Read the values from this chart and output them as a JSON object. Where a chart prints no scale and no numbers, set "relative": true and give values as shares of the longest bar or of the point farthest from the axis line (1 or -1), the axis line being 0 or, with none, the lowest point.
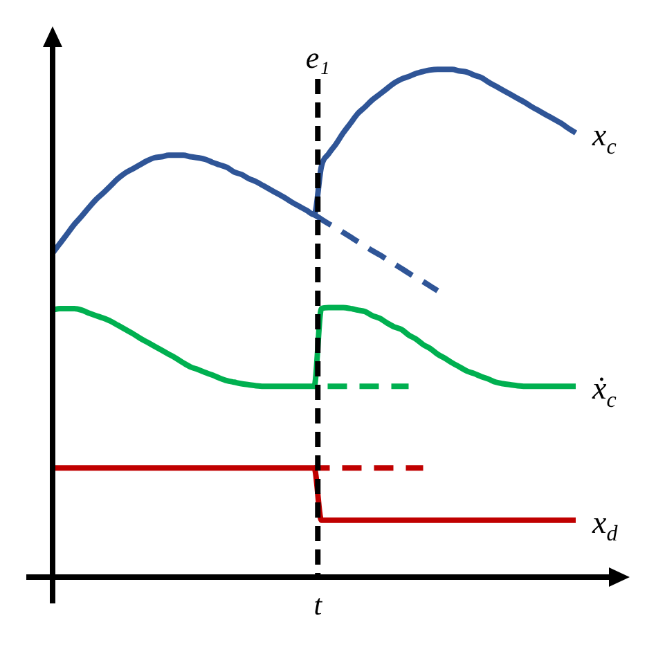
{
  "chart_data": {
    "type": "line",
    "relative": true,
    "categories": [
      null,
      null,
      null,
      null,
      null,
      null,
      null,
      null,
      null,
      null,
      null,
      null,
      null,
      null,
      null,
      null,
      null,
      null,
      null,
      null,
      null,
      null,
      null,
      null,
      null,
      null,
      null,
      null,
      null,
      null,
      null,
      null,
      null,
      null,
      null,
      null,
      null,
      null,
      null,
      null,
      null,
      null,
      null,
      null,
      null,
      null,
      null,
      null,
      null,
      null,
      null,
      null,
      null,
      null,
      null,
      null,
      null,
      null,
      null,
      null,
      null,
      null,
      null,
      null,
      null,
      null,
      null,
      null,
      null,
      null,
      null,
      null,
      null
    ],
    "series": [
      {
        "name": "x$_{c}$",
        "color": "#2f5597",
        "values": [
          0.638,
          0.657,
          0.676,
          0.695,
          0.711,
          0.728,
          0.744,
          0.757,
          0.771,
          0.785,
          0.796,
          0.804,
          0.812,
          0.82,
          0.826,
          0.828,
          0.831,
          0.831,
          0.831,
          0.828,
          0.826,
          0.823,
          0.817,
          0.812,
          0.807,
          0.798,
          0.793,
          0.785,
          0.779,
          0.771,
          0.763,
          0.755,
          0.747,
          0.738,
          0.73,
          0.722,
          0.714,
          0.809,
          0.834,
          0.853,
          0.875,
          0.894,
          0.913,
          0.926,
          0.94,
          0.951,
          0.962,
          0.973,
          0.981,
          0.986,
          0.992,
          0.996,
          0.999,
          1,
          1,
          1,
          0.997,
          0.995,
          0.989,
          0.984,
          0.975,
          0.967,
          0.959,
          0.951,
          0.943,
          0.935,
          0.926,
          0.918,
          0.91,
          0.902,
          0.894,
          0.884,
          0.875
        ]
      },
      {
        "color": "#2f5597",
        "line_style": "dashed",
        "values": [
          null,
          null,
          null,
          null,
          null,
          null,
          null,
          null,
          null,
          null,
          null,
          null,
          null,
          null,
          null,
          null,
          null,
          null,
          null,
          null,
          null,
          null,
          null,
          null,
          null,
          null,
          null,
          null,
          null,
          null,
          null,
          null,
          null,
          null,
          null,
          null,
          0.714,
          0.705,
          0.696,
          0.688,
          0.679,
          0.67,
          0.661,
          0.652,
          0.643,
          0.635,
          0.626,
          0.617,
          0.608,
          0.599,
          0.59,
          0.582,
          0.573,
          0.564,
          null,
          null,
          null,
          null,
          null,
          null,
          null,
          null,
          null,
          null,
          null,
          null,
          null,
          null,
          null,
          null,
          null,
          null,
          null
        ]
      },
      {
        "name": "ẋ$_{c}$",
        "color": "#00b050",
        "values": [
          0.526,
          0.529,
          0.529,
          0.529,
          0.526,
          0.52,
          0.515,
          0.51,
          0.504,
          0.496,
          0.488,
          0.48,
          0.471,
          0.463,
          0.455,
          0.447,
          0.439,
          0.431,
          0.422,
          0.414,
          0.409,
          0.403,
          0.398,
          0.392,
          0.387,
          0.384,
          0.381,
          0.379,
          0.377,
          0.376,
          0.376,
          0.376,
          0.376,
          0.376,
          0.376,
          0.376,
          0.376,
          0.529,
          0.531,
          0.531,
          0.531,
          0.529,
          0.526,
          0.523,
          0.515,
          0.51,
          0.501,
          0.493,
          0.488,
          0.477,
          0.469,
          0.458,
          0.45,
          0.439,
          0.431,
          0.422,
          0.414,
          0.406,
          0.401,
          0.395,
          0.39,
          0.384,
          0.381,
          0.379,
          0.377,
          0.376,
          0.376,
          0.376,
          0.376,
          0.376,
          0.376,
          0.376,
          0.376
        ]
      },
      {
        "color": "#00b050",
        "line_style": "dashed",
        "values": [
          null,
          null,
          null,
          null,
          null,
          null,
          null,
          null,
          null,
          null,
          null,
          null,
          null,
          null,
          null,
          null,
          null,
          null,
          null,
          null,
          null,
          null,
          null,
          null,
          null,
          null,
          null,
          null,
          null,
          null,
          null,
          null,
          null,
          null,
          null,
          null,
          0.376,
          0.376,
          0.376,
          0.376,
          0.376,
          0.376,
          0.376,
          0.376,
          0.376,
          0.376,
          0.376,
          0.376,
          0.376,
          0.376,
          null,
          null,
          null,
          null,
          null,
          null,
          null,
          null,
          null,
          null,
          null,
          null,
          null,
          null,
          null,
          null,
          null,
          null,
          null,
          null,
          null,
          null,
          null
        ]
      },
      {
        "name": "x$_{d}$",
        "color": "#c00000",
        "values": [
          0.215,
          0.215,
          0.215,
          0.215,
          0.215,
          0.215,
          0.215,
          0.215,
          0.215,
          0.215,
          0.215,
          0.215,
          0.215,
          0.215,
          0.215,
          0.215,
          0.215,
          0.215,
          0.215,
          0.215,
          0.215,
          0.215,
          0.215,
          0.215,
          0.215,
          0.215,
          0.215,
          0.215,
          0.215,
          0.215,
          0.215,
          0.215,
          0.215,
          0.215,
          0.215,
          0.215,
          0.215,
          0.112,
          0.112,
          0.112,
          0.112,
          0.112,
          0.112,
          0.112,
          0.112,
          0.112,
          0.112,
          0.112,
          0.112,
          0.112,
          0.112,
          0.112,
          0.112,
          0.112,
          0.112,
          0.112,
          0.112,
          0.112,
          0.112,
          0.112,
          0.112,
          0.112,
          0.112,
          0.112,
          0.112,
          0.112,
          0.112,
          0.112,
          0.112,
          0.112,
          0.112,
          0.112,
          0.112
        ]
      },
      {
        "color": "#c00000",
        "line_style": "dashed",
        "values": [
          null,
          null,
          null,
          null,
          null,
          null,
          null,
          null,
          null,
          null,
          null,
          null,
          null,
          null,
          null,
          null,
          null,
          null,
          null,
          null,
          null,
          null,
          null,
          null,
          null,
          null,
          null,
          null,
          null,
          null,
          null,
          null,
          null,
          null,
          null,
          null,
          0.215,
          0.215,
          0.215,
          0.215,
          0.215,
          0.215,
          0.215,
          0.215,
          0.215,
          0.215,
          0.215,
          0.215,
          0.215,
          0.215,
          0.215,
          0.215,
          null,
          null,
          null,
          null,
          null,
          null,
          null,
          null,
          null,
          null,
          null,
          null,
          null,
          null,
          null,
          null,
          null,
          null,
          null,
          null,
          null
        ]
      }
    ],
    "annotations": [
      "e₁",
      "t"
    ]
  }
}
